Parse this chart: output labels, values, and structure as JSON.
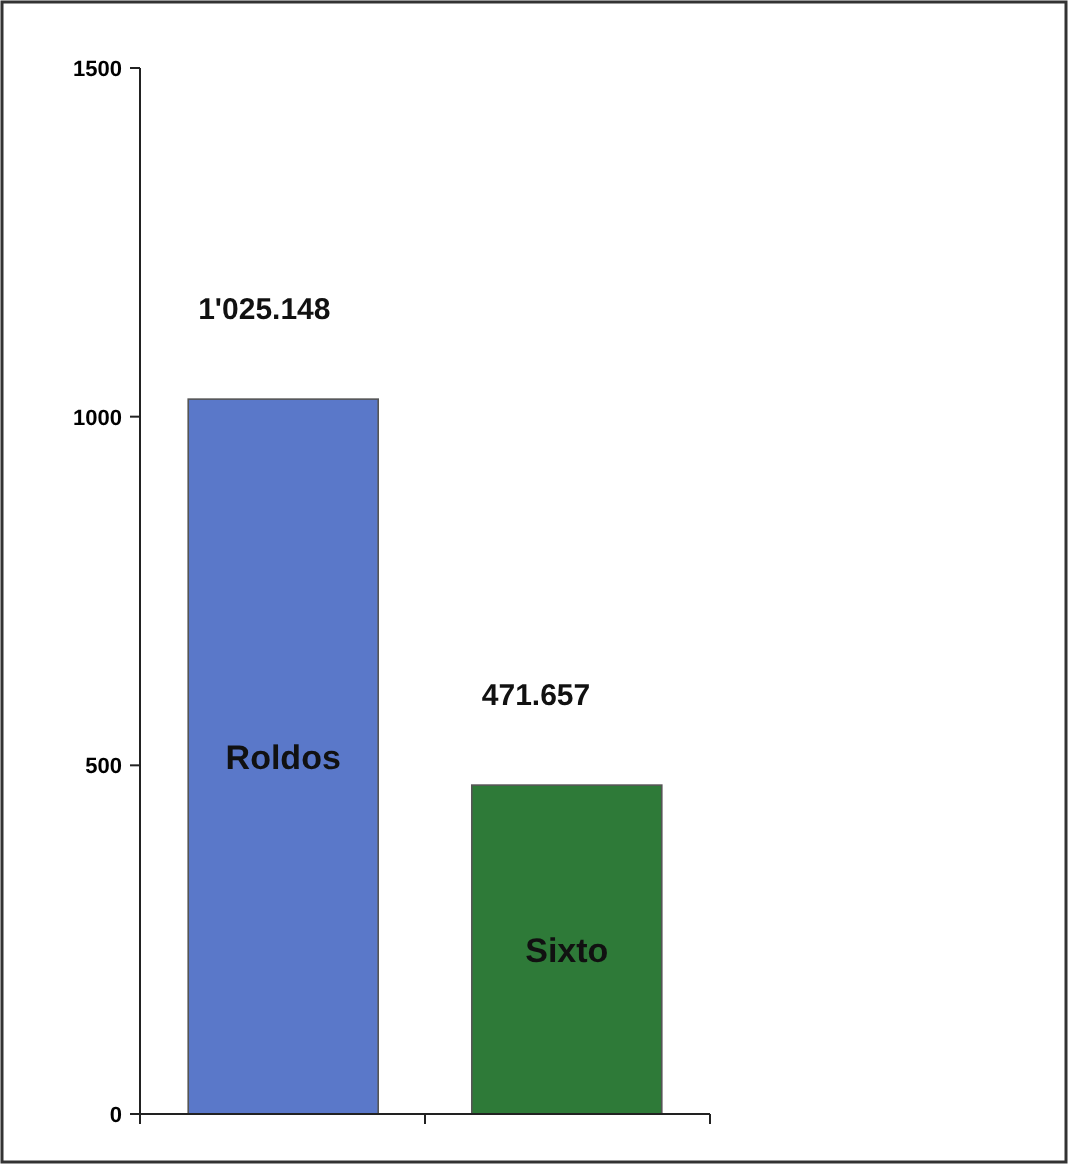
{
  "chart_data": {
    "type": "bar",
    "categories": [
      "Roldos",
      "Sixto"
    ],
    "values": [
      1025.148,
      471.657
    ],
    "colors": [
      "#5a78c9",
      "#2e7a38"
    ],
    "value_labels": [
      "1'025.148",
      "471.657"
    ],
    "ylim": [
      0,
      1500
    ],
    "yticks": [
      0,
      500,
      1000,
      1500
    ],
    "grid": false
  }
}
